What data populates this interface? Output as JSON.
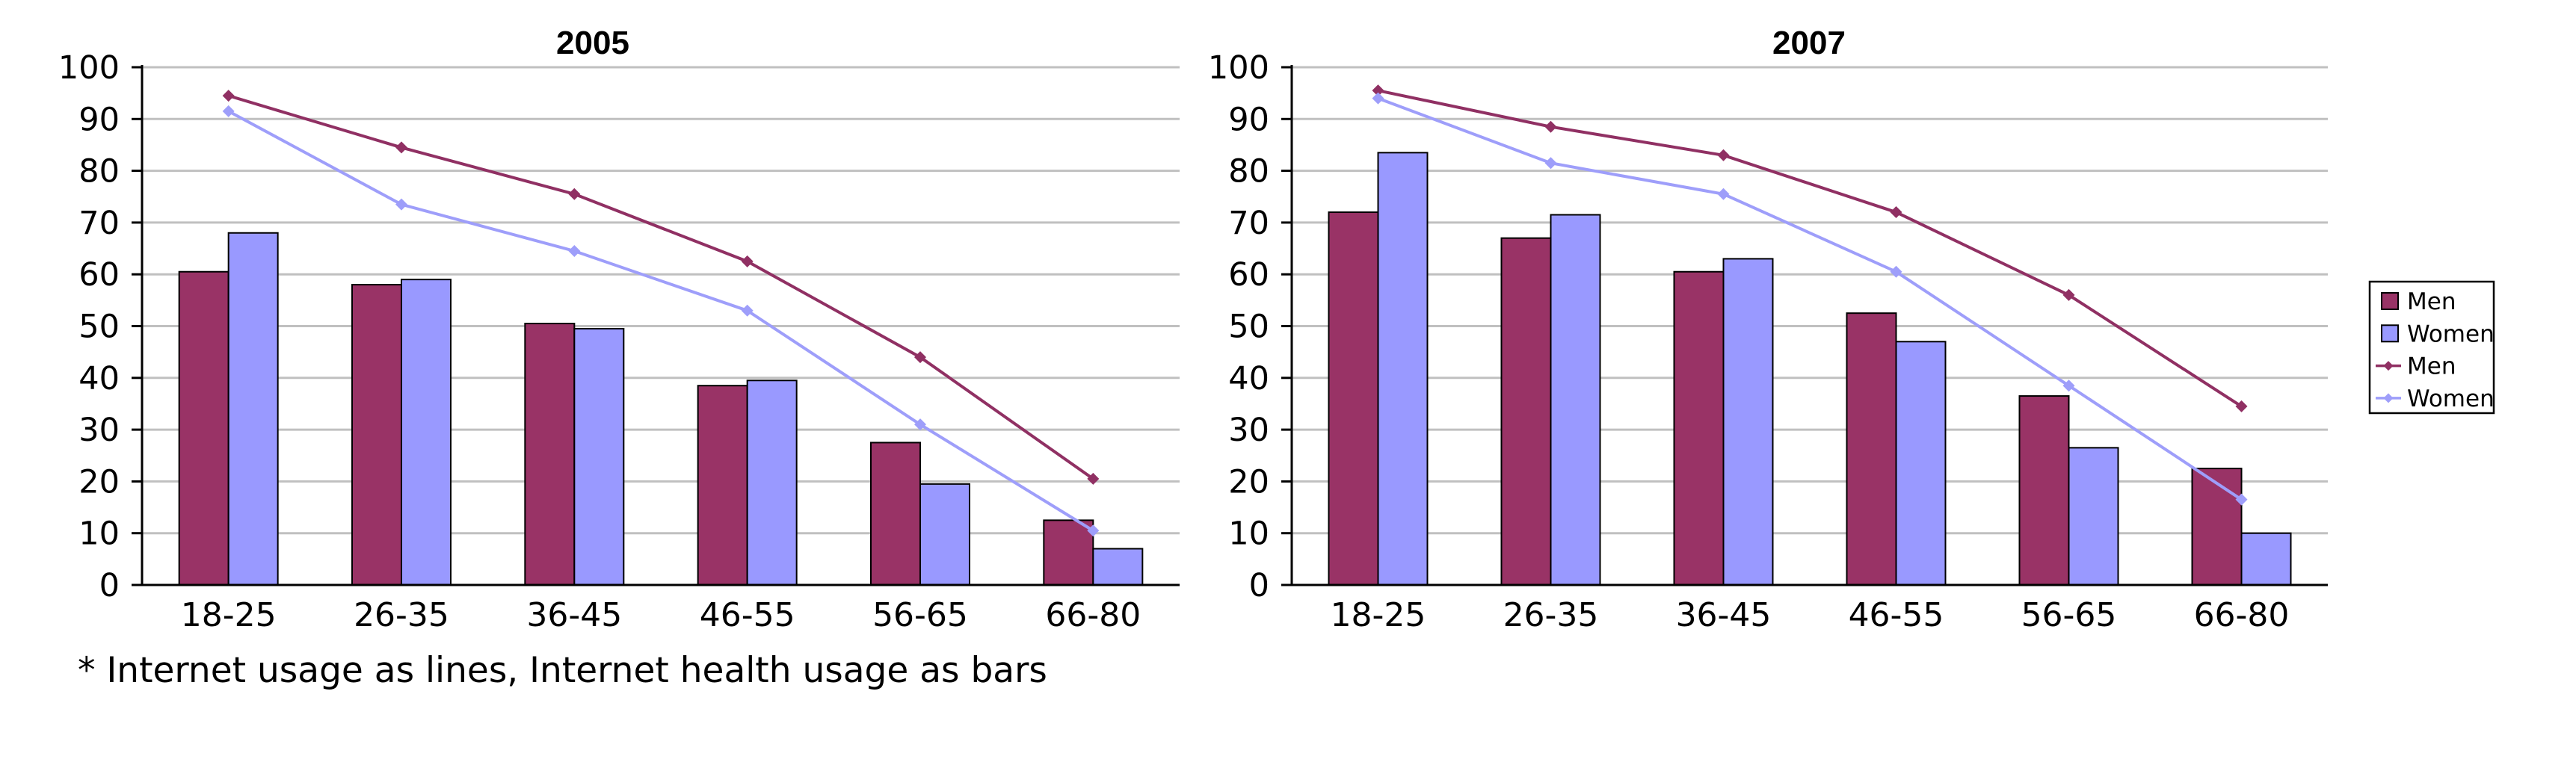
{
  "footnote": "* Internet usage as lines, Internet health usage as bars",
  "colors": {
    "men": "#993366",
    "women": "#9999FF",
    "men_line": "#903063",
    "women_line": "#9E9EFA",
    "gridline": "#C0C0C0",
    "axis": "#000000",
    "background": "#FFFFFF"
  },
  "legend": {
    "position": "right",
    "items": [
      {
        "label": "Men",
        "symbol": "box",
        "color": "#993366"
      },
      {
        "label": "Women",
        "symbol": "box",
        "color": "#9999FF"
      },
      {
        "label": "Men",
        "symbol": "line",
        "color": "#903063"
      },
      {
        "label": "Women",
        "symbol": "line",
        "color": "#9E9EFA"
      }
    ]
  },
  "chart_data": [
    {
      "type": "bar+line",
      "title": "2005",
      "xlabel": "",
      "ylabel": "",
      "ylim": [
        0,
        100
      ],
      "y_ticks": [
        0,
        10,
        20,
        30,
        40,
        50,
        60,
        70,
        80,
        90,
        100
      ],
      "grid": true,
      "categories": [
        "18-25",
        "26-35",
        "36-45",
        "46-55",
        "56-65",
        "66-80"
      ],
      "bar_series": [
        {
          "name": "Men",
          "values": [
            60.5,
            58,
            50.5,
            38.5,
            27.5,
            12.5
          ]
        },
        {
          "name": "Women",
          "values": [
            68,
            59,
            49.5,
            39.5,
            19.5,
            7
          ]
        }
      ],
      "line_series": [
        {
          "name": "Men",
          "values": [
            94.5,
            84.5,
            75.5,
            62.5,
            44,
            20.5
          ]
        },
        {
          "name": "Women",
          "values": [
            91.5,
            73.5,
            64.5,
            53,
            31,
            10.5
          ]
        }
      ],
      "note": "Internet usage shown as lines, Internet health usage shown as bars"
    },
    {
      "type": "bar+line",
      "title": "2007",
      "xlabel": "",
      "ylabel": "",
      "ylim": [
        0,
        100
      ],
      "y_ticks": [
        0,
        10,
        20,
        30,
        40,
        50,
        60,
        70,
        80,
        90,
        100
      ],
      "grid": true,
      "categories": [
        "18-25",
        "26-35",
        "36-45",
        "46-55",
        "56-65",
        "66-80"
      ],
      "bar_series": [
        {
          "name": "Men",
          "values": [
            72,
            67,
            60.5,
            52.5,
            36.5,
            22.5
          ]
        },
        {
          "name": "Women",
          "values": [
            83.5,
            71.5,
            63,
            47,
            26.5,
            10
          ]
        }
      ],
      "line_series": [
        {
          "name": "Men",
          "values": [
            95.5,
            88.5,
            83,
            72,
            56,
            34.5
          ]
        },
        {
          "name": "Women",
          "values": [
            94,
            81.5,
            75.5,
            60.5,
            38.5,
            16.5
          ]
        }
      ],
      "note": "Internet usage shown as lines, Internet health usage shown as bars"
    }
  ]
}
